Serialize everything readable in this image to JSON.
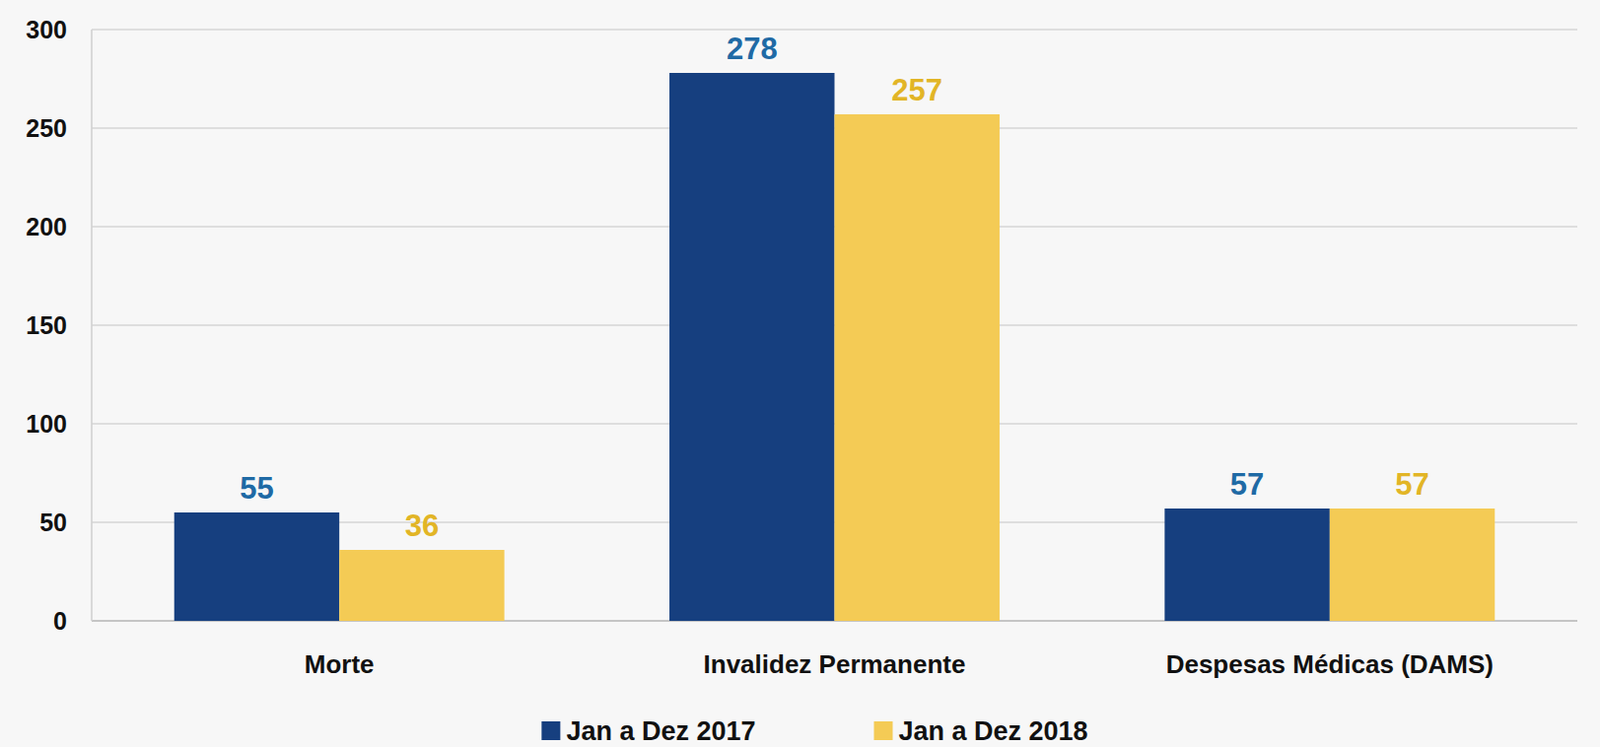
{
  "chart_data": {
    "type": "bar",
    "categories": [
      "Morte",
      "Invalidez Permanente",
      "Despesas Médicas (DAMS)"
    ],
    "series": [
      {
        "name": "Jan a Dez 2017",
        "color": "#163F7F",
        "values": [
          55,
          278,
          57
        ]
      },
      {
        "name": "Jan a Dez 2018",
        "color": "#F4CB55",
        "values": [
          36,
          257,
          57
        ]
      }
    ],
    "ylim": [
      0,
      300
    ],
    "yticks": [
      0,
      50,
      100,
      150,
      200,
      250,
      300
    ],
    "grid": true,
    "legend": "bottom",
    "data_labels": true
  }
}
